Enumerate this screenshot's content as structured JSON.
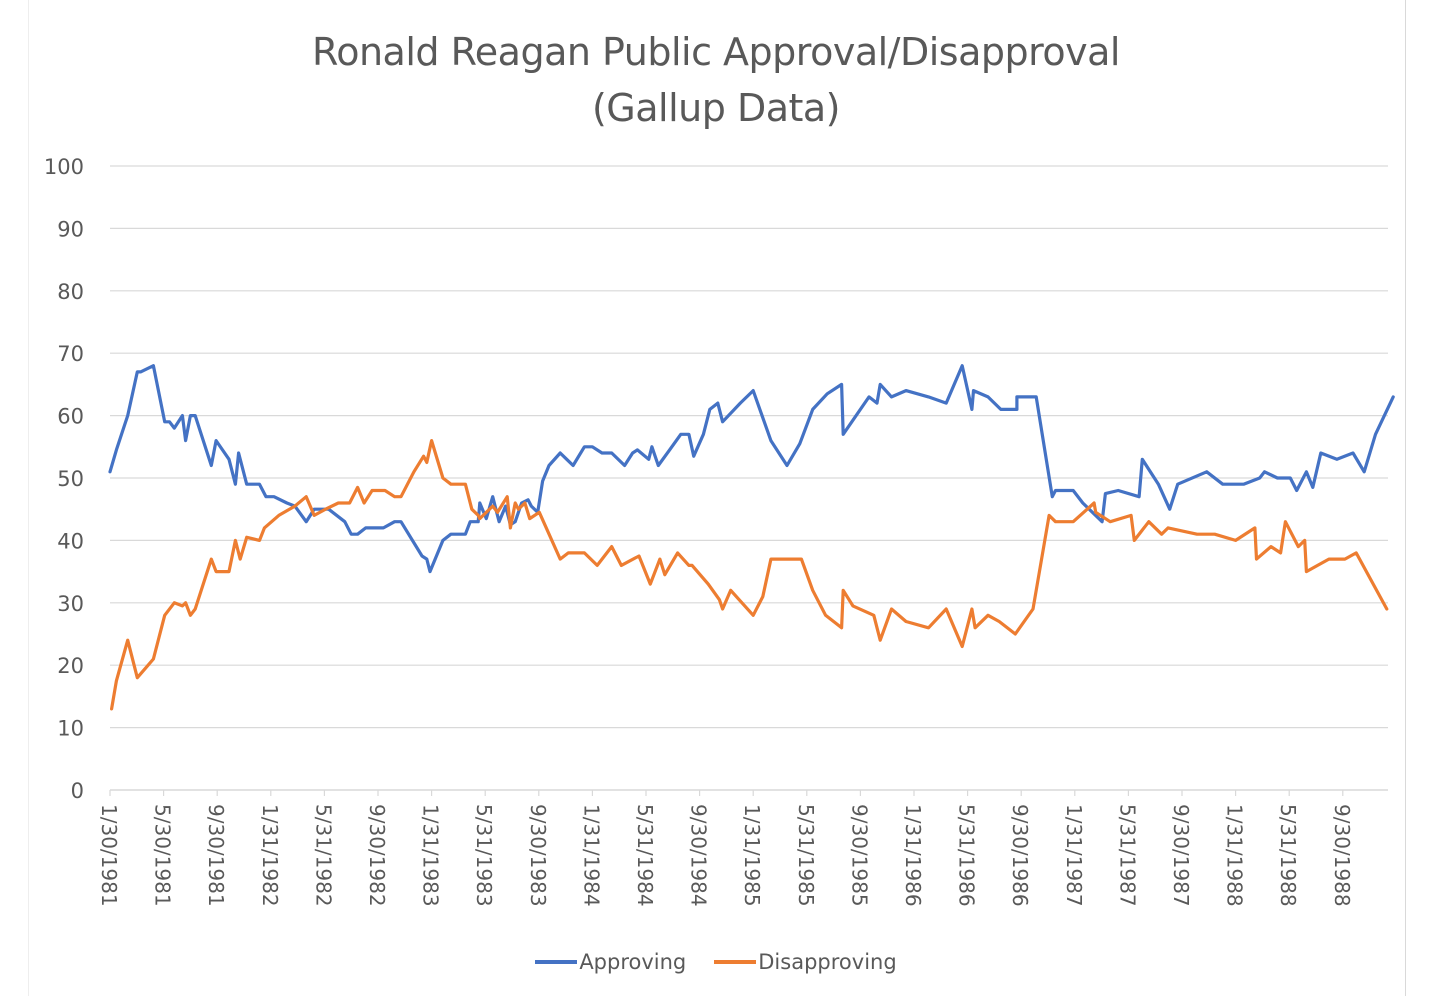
{
  "chart_data": {
    "type": "line",
    "title": "Ronald Reagan Public Approval/Disapproval",
    "subtitle": "(Gallup Data)",
    "xlabel": "",
    "ylabel": "",
    "ylim": [
      0,
      100
    ],
    "yticks": [
      0,
      10,
      20,
      30,
      40,
      50,
      60,
      70,
      80,
      90,
      100
    ],
    "xlim": [
      1981.08,
      1989.0
    ],
    "x_unit": "year (decimal)",
    "xtick_labels": [
      "1/30/1981",
      "5/30/1981",
      "9/30/1981",
      "1/31/1982",
      "5/31/1982",
      "9/30/1982",
      "1/31/1983",
      "5/31/1983",
      "9/30/1983",
      "1/31/1984",
      "5/31/1984",
      "9/30/1984",
      "1/31/1985",
      "5/31/1985",
      "9/30/1985",
      "1/31/1986",
      "5/31/1986",
      "9/30/1986",
      "1/31/1987",
      "5/31/1987",
      "9/30/1987",
      "1/31/1988",
      "5/31/1988",
      "9/30/1988"
    ],
    "grid": true,
    "legend": "bottom",
    "series": [
      {
        "name": "Approving",
        "color": "#4472c4",
        "points": [
          [
            1981.08,
            51
          ],
          [
            1981.12,
            54.5
          ],
          [
            1981.19,
            60
          ],
          [
            1981.25,
            67
          ],
          [
            1981.27,
            67
          ],
          [
            1981.35,
            68
          ],
          [
            1981.42,
            59
          ],
          [
            1981.45,
            59
          ],
          [
            1981.48,
            58
          ],
          [
            1981.53,
            60
          ],
          [
            1981.55,
            56
          ],
          [
            1981.58,
            60
          ],
          [
            1981.61,
            60
          ],
          [
            1981.71,
            52
          ],
          [
            1981.74,
            56
          ],
          [
            1981.82,
            53
          ],
          [
            1981.86,
            49
          ],
          [
            1981.88,
            54
          ],
          [
            1981.93,
            49
          ],
          [
            1982.01,
            49
          ],
          [
            1982.05,
            47
          ],
          [
            1982.1,
            47
          ],
          [
            1982.18,
            46
          ],
          [
            1982.23,
            45.5
          ],
          [
            1982.3,
            43
          ],
          [
            1982.35,
            45
          ],
          [
            1982.44,
            45
          ],
          [
            1982.54,
            43
          ],
          [
            1982.58,
            41
          ],
          [
            1982.62,
            41
          ],
          [
            1982.67,
            42
          ],
          [
            1982.78,
            42
          ],
          [
            1982.85,
            43
          ],
          [
            1982.89,
            43
          ],
          [
            1983.02,
            37.5
          ],
          [
            1983.05,
            37
          ],
          [
            1983.07,
            35
          ],
          [
            1983.15,
            40
          ],
          [
            1983.2,
            41
          ],
          [
            1983.29,
            41
          ],
          [
            1983.32,
            43
          ],
          [
            1983.37,
            43
          ],
          [
            1983.38,
            46
          ],
          [
            1983.42,
            43.5
          ],
          [
            1983.46,
            47
          ],
          [
            1983.5,
            43
          ],
          [
            1983.54,
            45.5
          ],
          [
            1983.57,
            42.5
          ],
          [
            1983.6,
            43
          ],
          [
            1983.64,
            46
          ],
          [
            1983.68,
            46.5
          ],
          [
            1983.7,
            45.5
          ],
          [
            1983.74,
            44.5
          ],
          [
            1983.77,
            49.5
          ],
          [
            1983.81,
            52
          ],
          [
            1983.88,
            54
          ],
          [
            1983.92,
            53
          ],
          [
            1983.96,
            52
          ],
          [
            1984.03,
            55
          ],
          [
            1984.08,
            55
          ],
          [
            1984.14,
            54
          ],
          [
            1984.2,
            54
          ],
          [
            1984.28,
            52
          ],
          [
            1984.33,
            54
          ],
          [
            1984.36,
            54.5
          ],
          [
            1984.43,
            53
          ],
          [
            1984.45,
            55
          ],
          [
            1984.49,
            52
          ],
          [
            1984.56,
            54.5
          ],
          [
            1984.63,
            57
          ],
          [
            1984.68,
            57
          ],
          [
            1984.71,
            53.5
          ],
          [
            1984.77,
            57
          ],
          [
            1984.81,
            61
          ],
          [
            1984.86,
            62
          ],
          [
            1984.89,
            59
          ],
          [
            1985.0,
            62
          ],
          [
            1985.08,
            64
          ],
          [
            1985.19,
            56
          ],
          [
            1985.29,
            52
          ],
          [
            1985.37,
            55.5
          ],
          [
            1985.45,
            61
          ],
          [
            1985.54,
            63.5
          ],
          [
            1985.63,
            65
          ],
          [
            1985.64,
            57
          ],
          [
            1985.8,
            63
          ],
          [
            1985.85,
            62
          ],
          [
            1985.87,
            65
          ],
          [
            1985.94,
            63
          ],
          [
            1986.03,
            64
          ],
          [
            1986.17,
            63
          ],
          [
            1986.28,
            62
          ],
          [
            1986.38,
            68
          ],
          [
            1986.44,
            61
          ],
          [
            1986.45,
            64
          ],
          [
            1986.54,
            63
          ],
          [
            1986.62,
            61
          ],
          [
            1986.72,
            61
          ],
          [
            1986.72,
            63
          ],
          [
            1986.84,
            63
          ],
          [
            1986.94,
            47
          ],
          [
            1986.96,
            48
          ],
          [
            1987.07,
            48
          ],
          [
            1987.13,
            46
          ],
          [
            1987.25,
            43
          ],
          [
            1987.27,
            47.5
          ],
          [
            1987.35,
            48
          ],
          [
            1987.48,
            47
          ],
          [
            1987.5,
            53
          ],
          [
            1987.6,
            49
          ],
          [
            1987.67,
            45
          ],
          [
            1987.72,
            49
          ],
          [
            1987.9,
            51
          ],
          [
            1988.0,
            49
          ],
          [
            1988.13,
            49
          ],
          [
            1988.23,
            50
          ],
          [
            1988.26,
            51
          ],
          [
            1988.34,
            50
          ],
          [
            1988.42,
            50
          ],
          [
            1988.46,
            48
          ],
          [
            1988.52,
            51
          ],
          [
            1988.56,
            48.5
          ],
          [
            1988.61,
            54
          ],
          [
            1988.71,
            53
          ],
          [
            1988.81,
            54
          ],
          [
            1988.88,
            51
          ],
          [
            1988.95,
            57
          ],
          [
            1989.06,
            63
          ]
        ]
      },
      {
        "name": "Disapproving",
        "color": "#ed7d31",
        "points": [
          [
            1981.09,
            13
          ],
          [
            1981.12,
            17.5
          ],
          [
            1981.19,
            24
          ],
          [
            1981.25,
            18
          ],
          [
            1981.3,
            19.5
          ],
          [
            1981.35,
            21
          ],
          [
            1981.42,
            28
          ],
          [
            1981.48,
            30
          ],
          [
            1981.53,
            29.5
          ],
          [
            1981.55,
            30
          ],
          [
            1981.58,
            28
          ],
          [
            1981.61,
            29
          ],
          [
            1981.71,
            37
          ],
          [
            1981.74,
            35
          ],
          [
            1981.82,
            35
          ],
          [
            1981.86,
            40
          ],
          [
            1981.89,
            37
          ],
          [
            1981.93,
            40.5
          ],
          [
            1982.01,
            40
          ],
          [
            1982.04,
            42
          ],
          [
            1982.13,
            44
          ],
          [
            1982.23,
            45.5
          ],
          [
            1982.3,
            47
          ],
          [
            1982.35,
            44
          ],
          [
            1982.42,
            45
          ],
          [
            1982.5,
            46
          ],
          [
            1982.57,
            46
          ],
          [
            1982.62,
            48.5
          ],
          [
            1982.66,
            46
          ],
          [
            1982.71,
            48
          ],
          [
            1982.79,
            48
          ],
          [
            1982.85,
            47
          ],
          [
            1982.89,
            47
          ],
          [
            1982.97,
            51
          ],
          [
            1983.03,
            53.5
          ],
          [
            1983.05,
            52.5
          ],
          [
            1983.08,
            56
          ],
          [
            1983.15,
            50
          ],
          [
            1983.2,
            49
          ],
          [
            1983.29,
            49
          ],
          [
            1983.33,
            45
          ],
          [
            1983.37,
            44
          ],
          [
            1983.38,
            43.5
          ],
          [
            1983.46,
            45.5
          ],
          [
            1983.49,
            44.5
          ],
          [
            1983.55,
            47
          ],
          [
            1983.57,
            42
          ],
          [
            1983.6,
            46
          ],
          [
            1983.62,
            45
          ],
          [
            1983.66,
            46
          ],
          [
            1983.69,
            43.5
          ],
          [
            1983.75,
            44.5
          ],
          [
            1983.88,
            37
          ],
          [
            1983.93,
            38
          ],
          [
            1984.03,
            38
          ],
          [
            1984.11,
            36
          ],
          [
            1984.2,
            39
          ],
          [
            1984.26,
            36
          ],
          [
            1984.37,
            37.5
          ],
          [
            1984.44,
            33
          ],
          [
            1984.5,
            37
          ],
          [
            1984.53,
            34.5
          ],
          [
            1984.61,
            38
          ],
          [
            1984.68,
            36
          ],
          [
            1984.7,
            36
          ],
          [
            1984.8,
            33
          ],
          [
            1984.87,
            30.5
          ],
          [
            1984.89,
            29
          ],
          [
            1984.94,
            32
          ],
          [
            1985.08,
            28
          ],
          [
            1985.14,
            31
          ],
          [
            1985.19,
            37
          ],
          [
            1985.38,
            37
          ],
          [
            1985.45,
            32
          ],
          [
            1985.53,
            28
          ],
          [
            1985.63,
            26
          ],
          [
            1985.64,
            32
          ],
          [
            1985.7,
            29.5
          ],
          [
            1985.83,
            28
          ],
          [
            1985.87,
            24
          ],
          [
            1985.94,
            29
          ],
          [
            1986.03,
            27
          ],
          [
            1986.17,
            26
          ],
          [
            1986.28,
            29
          ],
          [
            1986.38,
            23
          ],
          [
            1986.44,
            29
          ],
          [
            1986.46,
            26
          ],
          [
            1986.54,
            28
          ],
          [
            1986.61,
            27
          ],
          [
            1986.71,
            25
          ],
          [
            1986.82,
            29
          ],
          [
            1986.92,
            44
          ],
          [
            1986.96,
            43
          ],
          [
            1987.07,
            43
          ],
          [
            1987.2,
            46
          ],
          [
            1987.21,
            44.5
          ],
          [
            1987.3,
            43
          ],
          [
            1987.43,
            44
          ],
          [
            1987.45,
            40
          ],
          [
            1987.54,
            43
          ],
          [
            1987.62,
            41
          ],
          [
            1987.66,
            42
          ],
          [
            1987.84,
            41
          ],
          [
            1987.95,
            41
          ],
          [
            1988.08,
            40
          ],
          [
            1988.2,
            42
          ],
          [
            1988.21,
            37
          ],
          [
            1988.3,
            39
          ],
          [
            1988.36,
            38
          ],
          [
            1988.39,
            43
          ],
          [
            1988.47,
            39
          ],
          [
            1988.51,
            40
          ],
          [
            1988.52,
            35
          ],
          [
            1988.59,
            36
          ],
          [
            1988.66,
            37
          ],
          [
            1988.76,
            37
          ],
          [
            1988.83,
            38
          ],
          [
            1989.02,
            29
          ]
        ]
      }
    ]
  }
}
